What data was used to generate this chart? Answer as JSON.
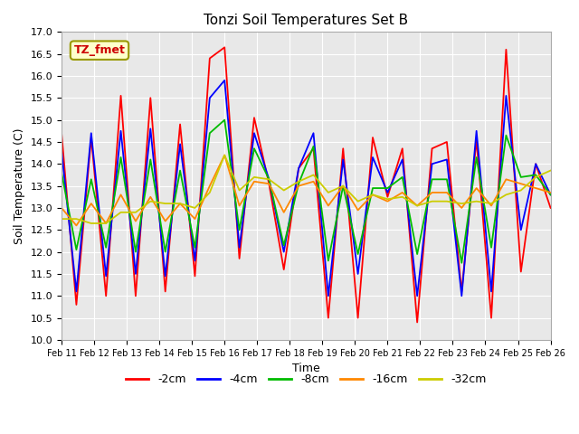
{
  "title": "Tonzi Soil Temperatures Set B",
  "xlabel": "Time",
  "ylabel": "Soil Temperature (C)",
  "ylim": [
    10.0,
    17.0
  ],
  "yticks": [
    10.0,
    10.5,
    11.0,
    11.5,
    12.0,
    12.5,
    13.0,
    13.5,
    14.0,
    14.5,
    15.0,
    15.5,
    16.0,
    16.5,
    17.0
  ],
  "xtick_labels": [
    "Feb 11",
    "Feb 12",
    "Feb 13",
    "Feb 14",
    "Feb 15",
    "Feb 16",
    "Feb 17",
    "Feb 18",
    "Feb 19",
    "Feb 20",
    "Feb 21",
    "Feb 22",
    "Feb 23",
    "Feb 24",
    "Feb 25",
    "Feb 26"
  ],
  "annotation_text": "TZ_fmet",
  "annotation_bg": "#ffffcc",
  "annotation_border": "#999900",
  "annotation_textcolor": "#cc0000",
  "plot_bg_color": "#e8e8e8",
  "fig_bg_color": "#ffffff",
  "grid_color": "#ffffff",
  "series_order": [
    "-2cm",
    "-4cm",
    "-8cm",
    "-16cm",
    "-32cm"
  ],
  "series": {
    "-2cm": {
      "color": "#ff0000",
      "data": [
        14.7,
        10.8,
        14.6,
        11.0,
        15.55,
        11.0,
        15.5,
        11.1,
        14.9,
        11.45,
        16.4,
        16.65,
        11.85,
        15.05,
        13.55,
        11.6,
        13.9,
        14.35,
        10.5,
        14.35,
        10.5,
        14.6,
        13.25,
        14.35,
        10.4,
        14.35,
        14.5,
        11.1,
        14.55,
        10.5,
        16.6,
        11.55,
        14.0,
        13.0
      ]
    },
    "-4cm": {
      "color": "#0000ff",
      "data": [
        14.3,
        11.1,
        14.7,
        11.45,
        14.75,
        11.5,
        14.8,
        11.45,
        14.45,
        11.8,
        15.5,
        15.9,
        12.1,
        14.7,
        13.65,
        12.0,
        13.9,
        14.7,
        11.0,
        14.1,
        11.5,
        14.15,
        13.35,
        14.1,
        11.0,
        14.0,
        14.1,
        11.0,
        14.75,
        11.1,
        15.55,
        12.5,
        14.0,
        13.3
      ]
    },
    "-8cm": {
      "color": "#00bb00",
      "data": [
        13.8,
        12.05,
        13.65,
        12.1,
        14.15,
        12.0,
        14.1,
        12.0,
        13.85,
        12.1,
        14.7,
        15.0,
        12.5,
        14.35,
        13.65,
        12.15,
        13.55,
        14.4,
        11.8,
        13.5,
        11.95,
        13.45,
        13.45,
        13.7,
        11.95,
        13.65,
        13.65,
        11.75,
        14.15,
        12.1,
        14.65,
        13.7,
        13.75,
        13.3
      ]
    },
    "-16cm": {
      "color": "#ff8800",
      "data": [
        13.0,
        12.6,
        13.1,
        12.65,
        13.3,
        12.7,
        13.25,
        12.7,
        13.1,
        12.75,
        13.5,
        14.2,
        13.05,
        13.6,
        13.55,
        12.9,
        13.5,
        13.6,
        13.05,
        13.5,
        12.95,
        13.3,
        13.15,
        13.35,
        13.05,
        13.35,
        13.35,
        13.0,
        13.45,
        13.05,
        13.65,
        13.55,
        13.45,
        13.35
      ]
    },
    "-32cm": {
      "color": "#cccc00",
      "data": [
        12.75,
        12.75,
        12.65,
        12.65,
        12.9,
        12.9,
        13.15,
        13.1,
        13.1,
        13.0,
        13.35,
        14.2,
        13.4,
        13.7,
        13.65,
        13.4,
        13.6,
        13.75,
        13.35,
        13.5,
        13.15,
        13.3,
        13.2,
        13.25,
        13.05,
        13.15,
        13.15,
        13.1,
        13.15,
        13.1,
        13.3,
        13.4,
        13.7,
        13.85
      ]
    }
  }
}
